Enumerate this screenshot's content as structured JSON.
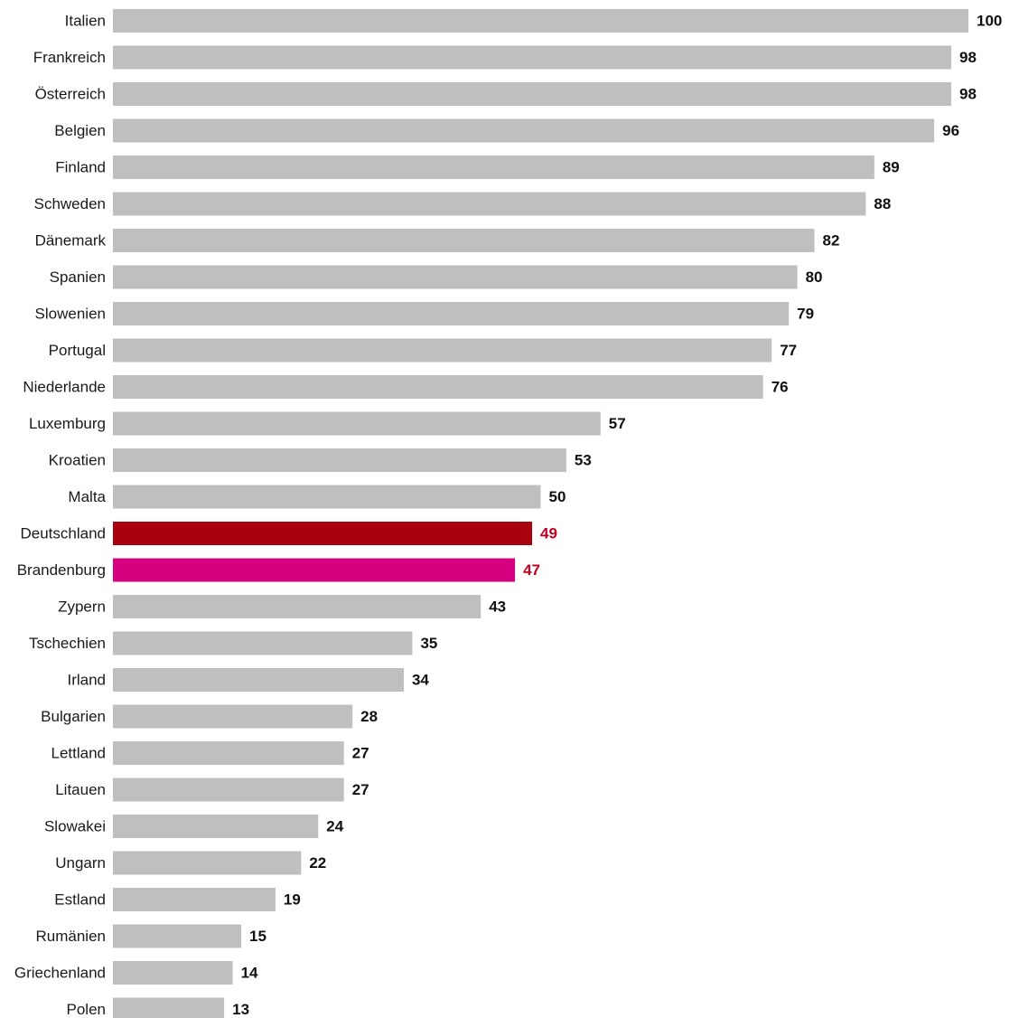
{
  "chart_data": {
    "type": "bar",
    "orientation": "horizontal",
    "title": "",
    "xlabel": "",
    "ylabel": "",
    "xlim": [
      0,
      100
    ],
    "grid": false,
    "legend": "none",
    "categories": [
      "Italien",
      "Frankreich",
      "Österreich",
      "Belgien",
      "Finland",
      "Schweden",
      "Dänemark",
      "Spanien",
      "Slowenien",
      "Portugal",
      "Niederlande",
      "Luxemburg",
      "Kroatien",
      "Malta",
      "Deutschland",
      "Brandenburg",
      "Zypern",
      "Tschechien",
      "Irland",
      "Bulgarien",
      "Lettland",
      "Litauen",
      "Slowakei",
      "Ungarn",
      "Estland",
      "Rumänien",
      "Griechenland",
      "Polen"
    ],
    "values": [
      100,
      98,
      98,
      96,
      89,
      88,
      82,
      80,
      79,
      77,
      76,
      57,
      53,
      50,
      49,
      47,
      43,
      35,
      34,
      28,
      27,
      27,
      24,
      22,
      19,
      15,
      14,
      13
    ],
    "colors": {
      "default_bar": "#bfbfbf",
      "default_label": "#111111",
      "highlight_label": "#c00020"
    },
    "highlights": {
      "Deutschland": "#a8000d",
      "Brandenburg": "#d5007f"
    }
  }
}
